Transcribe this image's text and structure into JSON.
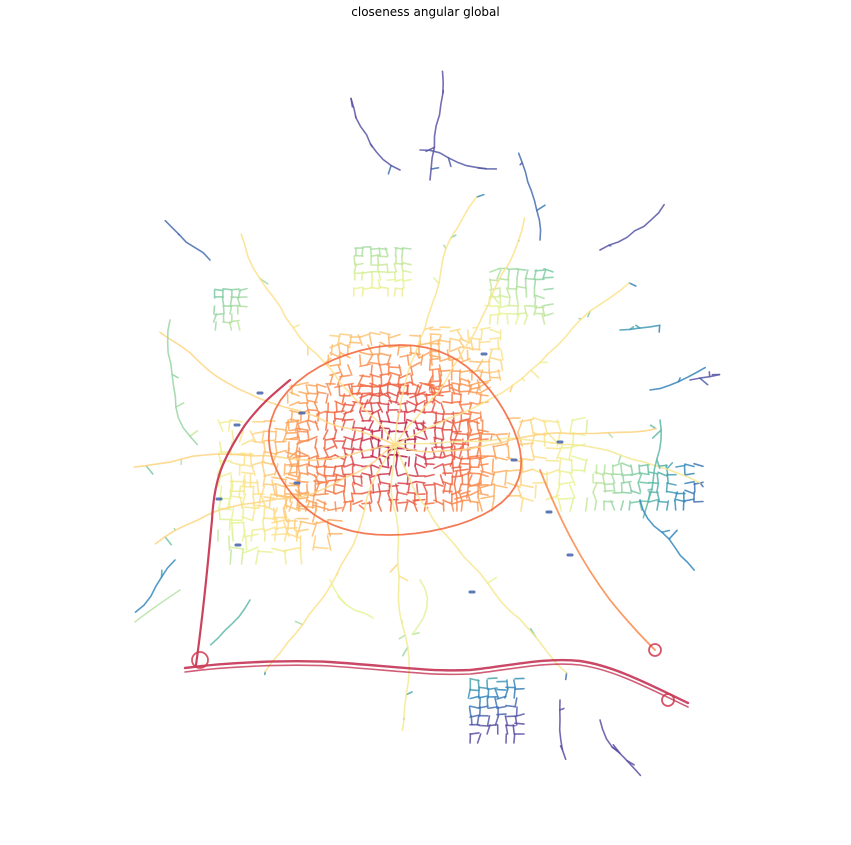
{
  "title": "closeness angular global",
  "colormap": {
    "name": "Spectral",
    "stops": [
      "#5e4fa2",
      "#3288bd",
      "#66c2a5",
      "#abdda4",
      "#e6f598",
      "#fee08b",
      "#fdae61",
      "#f46d43",
      "#d53e4f",
      "#9e0142"
    ]
  },
  "legend": null
}
